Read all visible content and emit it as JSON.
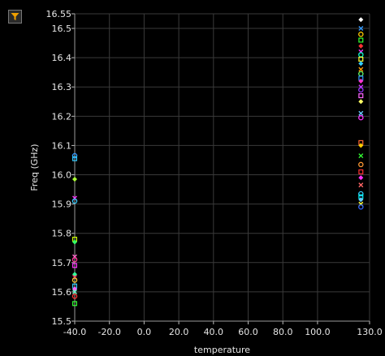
{
  "toolbar": {
    "filter_icon": "funnel-icon",
    "filter_icon_color": "#f0a000"
  },
  "chart_data": {
    "type": "scatter",
    "title": "",
    "xlabel": "temperature",
    "ylabel": "Freq (GHz)",
    "xlim": [
      -40,
      130
    ],
    "ylim": [
      15.5,
      16.55
    ],
    "x_ticks": [
      "-40.0",
      "-20.0",
      "0.0",
      "20.0",
      "40.0",
      "60.0",
      "80.0",
      "100.0",
      "130.0"
    ],
    "x_tick_values": [
      -40,
      -20,
      0,
      20,
      40,
      60,
      80,
      100,
      130
    ],
    "y_ticks": [
      "15.5",
      "15.6",
      "15.7",
      "15.8",
      "15.9",
      "16.0",
      "16.1",
      "16.2",
      "16.3",
      "16.4",
      "16.5",
      "16.55"
    ],
    "y_tick_values": [
      15.5,
      15.6,
      15.7,
      15.8,
      15.9,
      16.0,
      16.1,
      16.2,
      16.3,
      16.4,
      16.5,
      16.55
    ],
    "grid": true,
    "background": "#000000",
    "grid_color": "#3a3a3a",
    "points": [
      {
        "x": -40,
        "y": 16.065,
        "color": "#3399ff"
      },
      {
        "x": -40,
        "y": 16.055,
        "color": "#33ccff"
      },
      {
        "x": -40,
        "y": 15.985,
        "color": "#aaff33"
      },
      {
        "x": -40,
        "y": 15.92,
        "color": "#ff33ff"
      },
      {
        "x": -40,
        "y": 15.91,
        "color": "#33ccff"
      },
      {
        "x": -40,
        "y": 15.78,
        "color": "#ccff00"
      },
      {
        "x": -40,
        "y": 15.77,
        "color": "#33ff66"
      },
      {
        "x": -40,
        "y": 15.72,
        "color": "#ff66cc"
      },
      {
        "x": -40,
        "y": 15.71,
        "color": "#ff3399"
      },
      {
        "x": -40,
        "y": 15.69,
        "color": "#ff33ff"
      },
      {
        "x": -40,
        "y": 15.66,
        "color": "#33ff99"
      },
      {
        "x": -40,
        "y": 15.65,
        "color": "#ff3366"
      },
      {
        "x": -40,
        "y": 15.64,
        "color": "#ffcc33"
      },
      {
        "x": -40,
        "y": 15.62,
        "color": "#33ccff"
      },
      {
        "x": -40,
        "y": 15.61,
        "color": "#ff66ff"
      },
      {
        "x": -40,
        "y": 15.6,
        "color": "#66ffcc"
      },
      {
        "x": -40,
        "y": 15.585,
        "color": "#ff3333"
      },
      {
        "x": -40,
        "y": 15.56,
        "color": "#33ff33"
      },
      {
        "x": 125,
        "y": 16.53,
        "color": "#ffffff"
      },
      {
        "x": 125,
        "y": 16.5,
        "color": "#3399ff"
      },
      {
        "x": 125,
        "y": 16.48,
        "color": "#ffcc00"
      },
      {
        "x": 125,
        "y": 16.46,
        "color": "#33ff33"
      },
      {
        "x": 125,
        "y": 16.44,
        "color": "#ff3333"
      },
      {
        "x": 125,
        "y": 16.42,
        "color": "#ff33ff"
      },
      {
        "x": 125,
        "y": 16.41,
        "color": "#00ffcc"
      },
      {
        "x": 125,
        "y": 16.395,
        "color": "#ffff33"
      },
      {
        "x": 125,
        "y": 16.38,
        "color": "#33ccff"
      },
      {
        "x": 125,
        "y": 16.36,
        "color": "#ff9900"
      },
      {
        "x": 125,
        "y": 16.345,
        "color": "#66ff66"
      },
      {
        "x": 125,
        "y": 16.33,
        "color": "#3399ff"
      },
      {
        "x": 125,
        "y": 16.32,
        "color": "#ff33cc"
      },
      {
        "x": 125,
        "y": 16.3,
        "color": "#cc33ff"
      },
      {
        "x": 125,
        "y": 16.29,
        "color": "#9933ff"
      },
      {
        "x": 125,
        "y": 16.27,
        "color": "#ff66ff"
      },
      {
        "x": 125,
        "y": 16.25,
        "color": "#ffff66"
      },
      {
        "x": 125,
        "y": 16.21,
        "color": "#66ccff"
      },
      {
        "x": 125,
        "y": 16.195,
        "color": "#ff33ff"
      },
      {
        "x": 125,
        "y": 16.11,
        "color": "#ff6633"
      },
      {
        "x": 125,
        "y": 16.1,
        "color": "#ffcc00"
      },
      {
        "x": 125,
        "y": 16.065,
        "color": "#33ff33"
      },
      {
        "x": 125,
        "y": 16.035,
        "color": "#ff9933"
      },
      {
        "x": 125,
        "y": 16.01,
        "color": "#ff3333"
      },
      {
        "x": 125,
        "y": 15.99,
        "color": "#ff33ff"
      },
      {
        "x": 125,
        "y": 15.965,
        "color": "#ff6666"
      },
      {
        "x": 125,
        "y": 15.935,
        "color": "#33ccff"
      },
      {
        "x": 125,
        "y": 15.925,
        "color": "#00ffff"
      },
      {
        "x": 125,
        "y": 15.915,
        "color": "#66ccff"
      },
      {
        "x": 125,
        "y": 15.9,
        "color": "#ffff33"
      },
      {
        "x": 125,
        "y": 15.89,
        "color": "#3366ff"
      }
    ]
  }
}
